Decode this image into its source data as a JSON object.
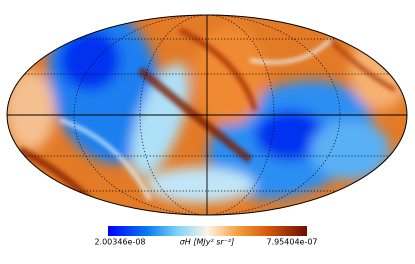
{
  "colorbar": {
    "label": "σH [MJy² sr⁻²]",
    "min_label": "2.00346e-08",
    "max_label": "7.95404e-07"
  }
}
